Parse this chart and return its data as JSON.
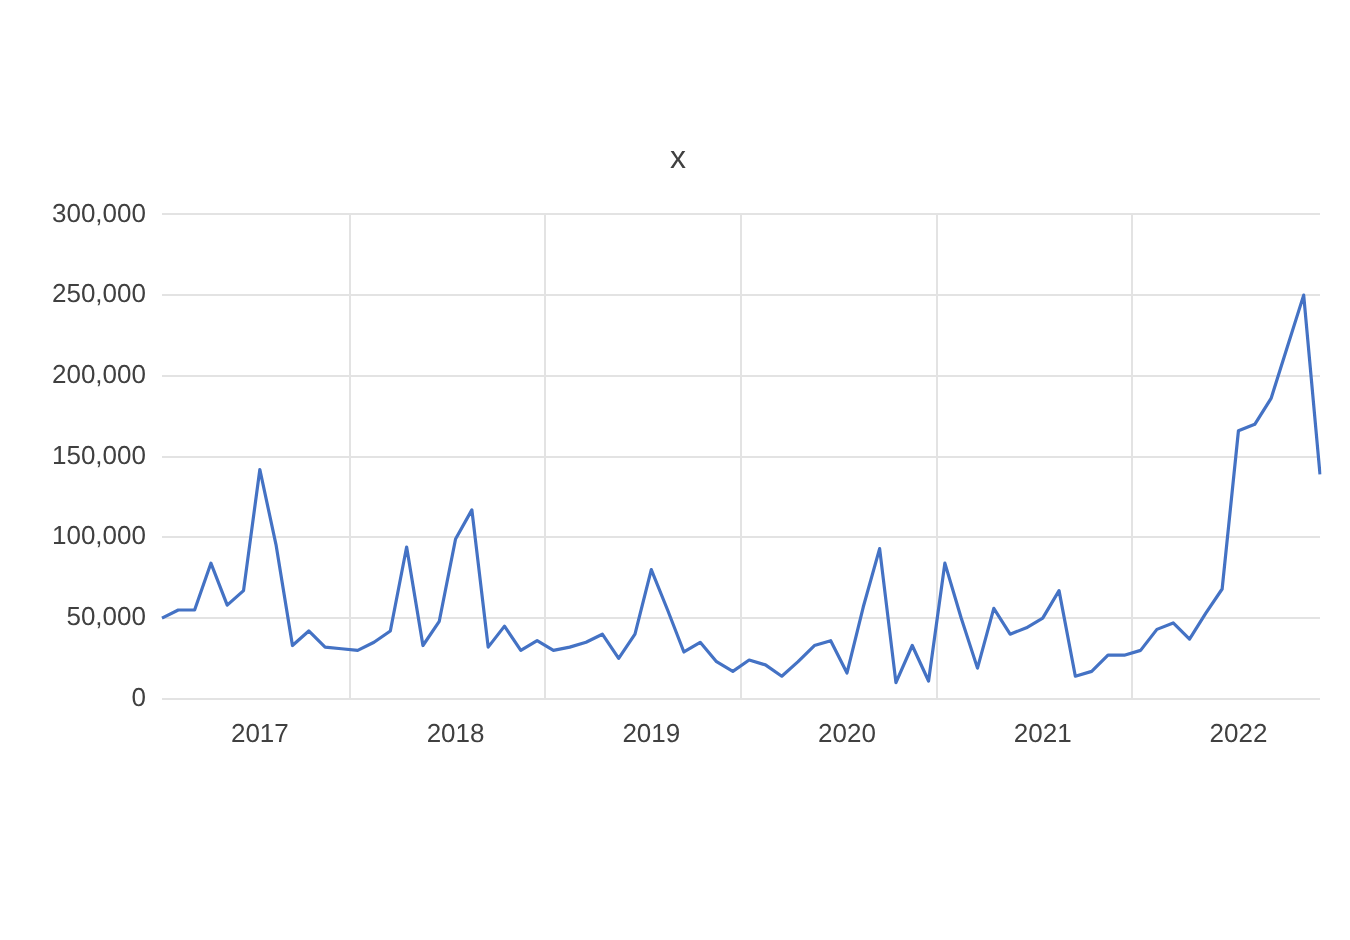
{
  "chart_data": {
    "type": "line",
    "title": "x",
    "categories": [
      null,
      null,
      null,
      null,
      null,
      null,
      "2017",
      null,
      null,
      null,
      null,
      null,
      null,
      null,
      null,
      null,
      null,
      null,
      "2018",
      null,
      null,
      null,
      null,
      null,
      null,
      null,
      null,
      null,
      null,
      null,
      "2019",
      null,
      null,
      null,
      null,
      null,
      null,
      null,
      null,
      null,
      null,
      null,
      "2020",
      null,
      null,
      null,
      null,
      null,
      null,
      null,
      null,
      null,
      null,
      null,
      "2021",
      null,
      null,
      null,
      null,
      null,
      null,
      null,
      null,
      null,
      null,
      null,
      "2022",
      null,
      null,
      null,
      null,
      null
    ],
    "series": [
      {
        "color": "#4472c4",
        "values": [
          50000,
          55000,
          55000,
          84000,
          58000,
          67000,
          142000,
          95000,
          33000,
          42000,
          32000,
          31000,
          30000,
          35000,
          42000,
          94000,
          33000,
          48000,
          99000,
          117000,
          32000,
          45000,
          30000,
          36000,
          30000,
          32000,
          35000,
          40000,
          25000,
          40000,
          80000,
          55000,
          29000,
          35000,
          23000,
          17000,
          24000,
          21000,
          14000,
          23000,
          33000,
          36000,
          16000,
          57000,
          93000,
          10000,
          33000,
          11000,
          84000,
          50000,
          19000,
          56000,
          40000,
          44000,
          50000,
          67000,
          14000,
          17000,
          27000,
          27000,
          30000,
          43000,
          47000,
          37000,
          53000,
          68000,
          166000,
          170000,
          186000,
          218000,
          250000,
          139000
        ]
      }
    ],
    "ylim": [
      0,
      300000
    ],
    "yticks": [
      {
        "value": 0,
        "label": "0"
      },
      {
        "value": 50000,
        "label": "50,000"
      },
      {
        "value": 100000,
        "label": "100,000"
      },
      {
        "value": 150000,
        "label": "150,000"
      },
      {
        "value": 200000,
        "label": "200,000"
      },
      {
        "value": 250000,
        "label": "250,000"
      },
      {
        "value": 300000,
        "label": "300,000"
      }
    ],
    "grid": true,
    "legend": false,
    "marker": "none",
    "line_style": "solid"
  }
}
